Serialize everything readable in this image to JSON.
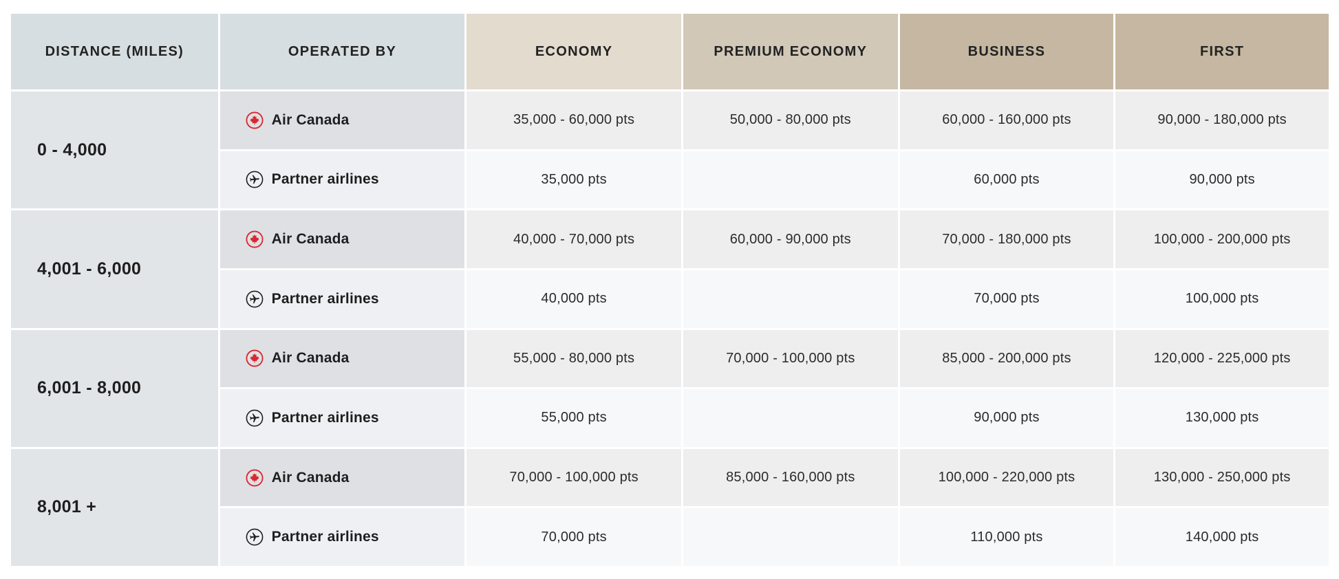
{
  "table": {
    "columns": [
      {
        "key": "distance",
        "label": "DISTANCE (MILES)"
      },
      {
        "key": "operated_by",
        "label": "OPERATED BY"
      },
      {
        "key": "economy",
        "label": "ECONOMY"
      },
      {
        "key": "premium_economy",
        "label": "PREMIUM ECONOMY"
      },
      {
        "key": "business",
        "label": "BUSINESS"
      },
      {
        "key": "first",
        "label": "FIRST"
      }
    ],
    "groups": [
      {
        "distance": "0 - 4,000",
        "rows": [
          {
            "operator": "Air Canada",
            "icon": "air-canada-maple-leaf-icon",
            "economy": "35,000 - 60,000 pts",
            "premium_economy": "50,000 - 80,000 pts",
            "business": "60,000 - 160,000 pts",
            "first": "90,000 - 180,000 pts"
          },
          {
            "operator": "Partner airlines",
            "icon": "partner-plane-icon",
            "economy": "35,000 pts",
            "premium_economy": "",
            "business": "60,000 pts",
            "first": "90,000 pts"
          }
        ]
      },
      {
        "distance": "4,001 - 6,000",
        "rows": [
          {
            "operator": "Air Canada",
            "icon": "air-canada-maple-leaf-icon",
            "economy": "40,000 - 70,000 pts",
            "premium_economy": "60,000 - 90,000 pts",
            "business": "70,000 - 180,000 pts",
            "first": "100,000 - 200,000 pts"
          },
          {
            "operator": "Partner airlines",
            "icon": "partner-plane-icon",
            "economy": "40,000 pts",
            "premium_economy": "",
            "business": "70,000 pts",
            "first": "100,000 pts"
          }
        ]
      },
      {
        "distance": "6,001 - 8,000",
        "rows": [
          {
            "operator": "Air Canada",
            "icon": "air-canada-maple-leaf-icon",
            "economy": "55,000 - 80,000 pts",
            "premium_economy": "70,000 - 100,000 pts",
            "business": "85,000 - 200,000 pts",
            "first": "120,000 - 225,000 pts"
          },
          {
            "operator": "Partner airlines",
            "icon": "partner-plane-icon",
            "economy": "55,000 pts",
            "premium_economy": "",
            "business": "90,000 pts",
            "first": "130,000 pts"
          }
        ]
      },
      {
        "distance": "8,001 +",
        "rows": [
          {
            "operator": "Air Canada",
            "icon": "air-canada-maple-leaf-icon",
            "economy": "70,000 - 100,000 pts",
            "premium_economy": "85,000 - 160,000 pts",
            "business": "100,000 - 220,000 pts",
            "first": "130,000 - 250,000 pts"
          },
          {
            "operator": "Partner airlines",
            "icon": "partner-plane-icon",
            "economy": "70,000 pts",
            "premium_economy": "",
            "business": "110,000 pts",
            "first": "140,000 pts"
          }
        ]
      }
    ],
    "colors": {
      "header_gray_bg": "#d7dee1",
      "economy_header_bg": "#e2dbce",
      "premium_economy_header_bg": "#d2c8b8",
      "business_header_bg": "#c5b7a1",
      "first_header_bg": "#c5b7a1",
      "distance_cell_bg": "#e2e5e8",
      "ac_label_cell_bg": "#dfe0e4",
      "partner_label_cell_bg": "#eff0f3",
      "ac_value_cell_bg": "#eeeeef",
      "partner_value_cell_bg": "#f7f8f9",
      "air_canada_red": "#d8292f",
      "text_dark": "#1e1e1e"
    }
  }
}
